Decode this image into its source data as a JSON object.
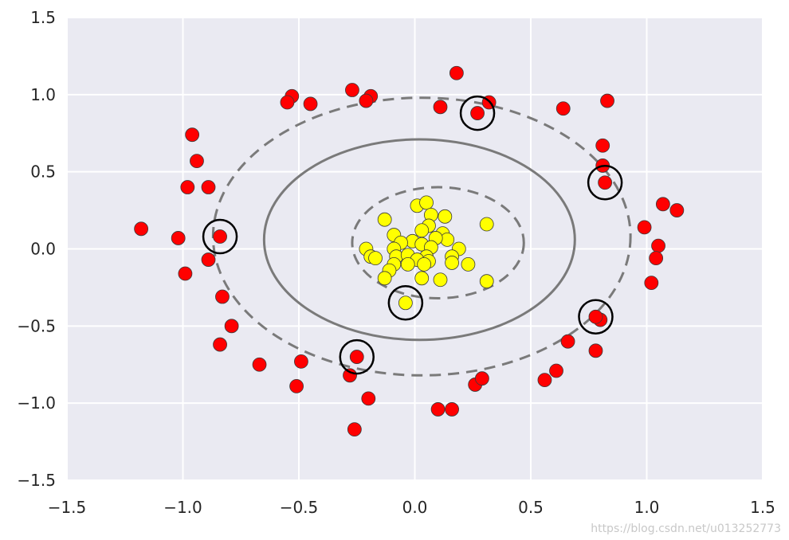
{
  "chart_data": {
    "type": "scatter",
    "xlim": [
      -1.5,
      1.5
    ],
    "ylim": [
      -1.5,
      1.5
    ],
    "grid": true,
    "background_color": "#eaeaf2",
    "grid_color": "#ffffff",
    "x_ticks": [
      "−1.5",
      "−1.0",
      "−0.5",
      "0.0",
      "0.5",
      "1.0",
      "1.5"
    ],
    "y_ticks": [
      "1.5",
      "1.0",
      "0.5",
      "0.0",
      "−0.5",
      "−1.0",
      "−1.5"
    ],
    "x_tick_values": [
      -1.5,
      -1.0,
      -0.5,
      0.0,
      0.5,
      1.0,
      1.5
    ],
    "y_tick_values": [
      1.5,
      1.0,
      0.5,
      0.0,
      -0.5,
      -1.0,
      -1.5
    ],
    "series": [
      {
        "color": "#ff0000",
        "points": [
          [
            0.18,
            1.14
          ],
          [
            -0.27,
            1.03
          ],
          [
            -0.19,
            0.99
          ],
          [
            -0.21,
            0.96
          ],
          [
            -0.53,
            0.99
          ],
          [
            -0.55,
            0.95
          ],
          [
            -0.45,
            0.94
          ],
          [
            0.11,
            0.92
          ],
          [
            0.32,
            0.95
          ],
          [
            0.27,
            0.88
          ],
          [
            0.64,
            0.91
          ],
          [
            0.83,
            0.96
          ],
          [
            0.81,
            0.67
          ],
          [
            0.81,
            0.54
          ],
          [
            0.82,
            0.43
          ],
          [
            -0.96,
            0.74
          ],
          [
            -0.94,
            0.57
          ],
          [
            -0.98,
            0.4
          ],
          [
            -0.89,
            0.4
          ],
          [
            -1.18,
            0.13
          ],
          [
            -1.02,
            0.07
          ],
          [
            -0.84,
            0.08
          ],
          [
            -0.89,
            -0.07
          ],
          [
            -0.99,
            -0.16
          ],
          [
            -0.83,
            -0.31
          ],
          [
            -0.79,
            -0.5
          ],
          [
            -0.84,
            -0.62
          ],
          [
            0.99,
            0.14
          ],
          [
            1.07,
            0.29
          ],
          [
            1.13,
            0.25
          ],
          [
            1.05,
            0.02
          ],
          [
            1.04,
            -0.06
          ],
          [
            1.02,
            -0.22
          ],
          [
            -0.67,
            -0.75
          ],
          [
            -0.49,
            -0.73
          ],
          [
            -0.51,
            -0.89
          ],
          [
            -0.28,
            -0.82
          ],
          [
            -0.25,
            -0.7
          ],
          [
            -0.2,
            -0.97
          ],
          [
            -0.26,
            -1.17
          ],
          [
            0.1,
            -1.04
          ],
          [
            0.16,
            -1.04
          ],
          [
            0.26,
            -0.88
          ],
          [
            0.29,
            -0.84
          ],
          [
            0.56,
            -0.85
          ],
          [
            0.61,
            -0.79
          ],
          [
            0.66,
            -0.6
          ],
          [
            0.78,
            -0.66
          ],
          [
            0.8,
            -0.46
          ],
          [
            0.78,
            -0.44
          ]
        ]
      },
      {
        "color": "#ffff00",
        "points": [
          [
            0.01,
            0.28
          ],
          [
            0.05,
            0.3
          ],
          [
            -0.13,
            0.19
          ],
          [
            0.07,
            0.22
          ],
          [
            0.13,
            0.21
          ],
          [
            0.31,
            0.16
          ],
          [
            0.06,
            0.15
          ],
          [
            0.03,
            0.12
          ],
          [
            0.12,
            0.1
          ],
          [
            -0.09,
            0.09
          ],
          [
            0.14,
            0.06
          ],
          [
            0.09,
            0.07
          ],
          [
            -0.01,
            0.05
          ],
          [
            0.03,
            0.03
          ],
          [
            -0.06,
            0.04
          ],
          [
            -0.21,
            0.0
          ],
          [
            -0.09,
            0.0
          ],
          [
            0.07,
            0.01
          ],
          [
            0.19,
            0.0
          ],
          [
            -0.19,
            -0.05
          ],
          [
            -0.17,
            -0.06
          ],
          [
            -0.08,
            -0.05
          ],
          [
            -0.03,
            -0.04
          ],
          [
            0.05,
            -0.05
          ],
          [
            0.16,
            -0.05
          ],
          [
            0.01,
            -0.07
          ],
          [
            0.06,
            -0.08
          ],
          [
            -0.09,
            -0.1
          ],
          [
            -0.03,
            -0.1
          ],
          [
            0.04,
            -0.1
          ],
          [
            0.16,
            -0.09
          ],
          [
            0.23,
            -0.1
          ],
          [
            -0.11,
            -0.14
          ],
          [
            -0.13,
            -0.19
          ],
          [
            0.03,
            -0.19
          ],
          [
            0.11,
            -0.2
          ],
          [
            0.31,
            -0.21
          ],
          [
            -0.04,
            -0.35
          ]
        ]
      }
    ],
    "support_vectors": [
      [
        0.27,
        0.88
      ],
      [
        0.82,
        0.43
      ],
      [
        -0.84,
        0.08
      ],
      [
        -0.04,
        -0.35
      ],
      [
        0.78,
        -0.44
      ],
      [
        -0.25,
        -0.7
      ]
    ],
    "decision_function_levels": [
      {
        "level": 0,
        "style": "solid",
        "ellipse": {
          "cx": 0.02,
          "cy": 0.06,
          "rx": 0.67,
          "ry": 0.65
        }
      },
      {
        "level": -1,
        "style": "dashed",
        "ellipse": {
          "cx": 0.1,
          "cy": 0.04,
          "rx": 0.37,
          "ry": 0.36
        }
      },
      {
        "level": 1,
        "style": "dashed",
        "ellipse": {
          "cx": 0.03,
          "cy": 0.08,
          "rx": 0.9,
          "ry": 0.9
        }
      }
    ]
  },
  "watermark": "https://blog.csdn.net/u013252773"
}
